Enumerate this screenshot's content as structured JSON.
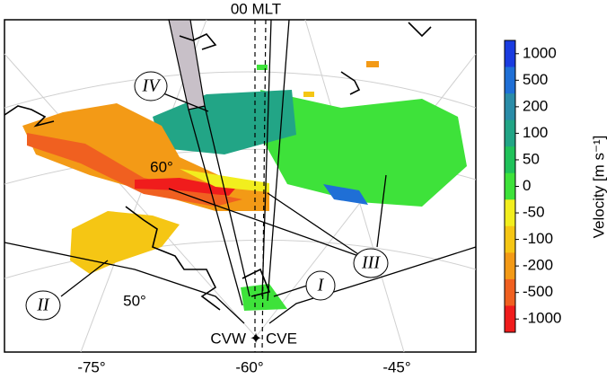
{
  "map": {
    "title": "00 MLT",
    "lat_labels": [
      "60°",
      "50°"
    ],
    "lon_labels": [
      "-75°",
      "-60°",
      "-45°"
    ],
    "stations": [
      "CVW",
      "CVE"
    ],
    "regions": [
      "I",
      "II",
      "III",
      "IV"
    ]
  },
  "colorbar": {
    "label": "Velocity [m s⁻¹]",
    "ticks": [
      1000,
      500,
      200,
      100,
      50,
      0,
      -50,
      -100,
      -200,
      -500,
      -1000
    ],
    "colors": [
      "#1a3ce0",
      "#1f6fd6",
      "#2a8ca8",
      "#22a586",
      "#20c25a",
      "#3ee23a",
      "#f2ee1e",
      "#f5c614",
      "#f39a16",
      "#f06020",
      "#f01c1c"
    ]
  }
}
